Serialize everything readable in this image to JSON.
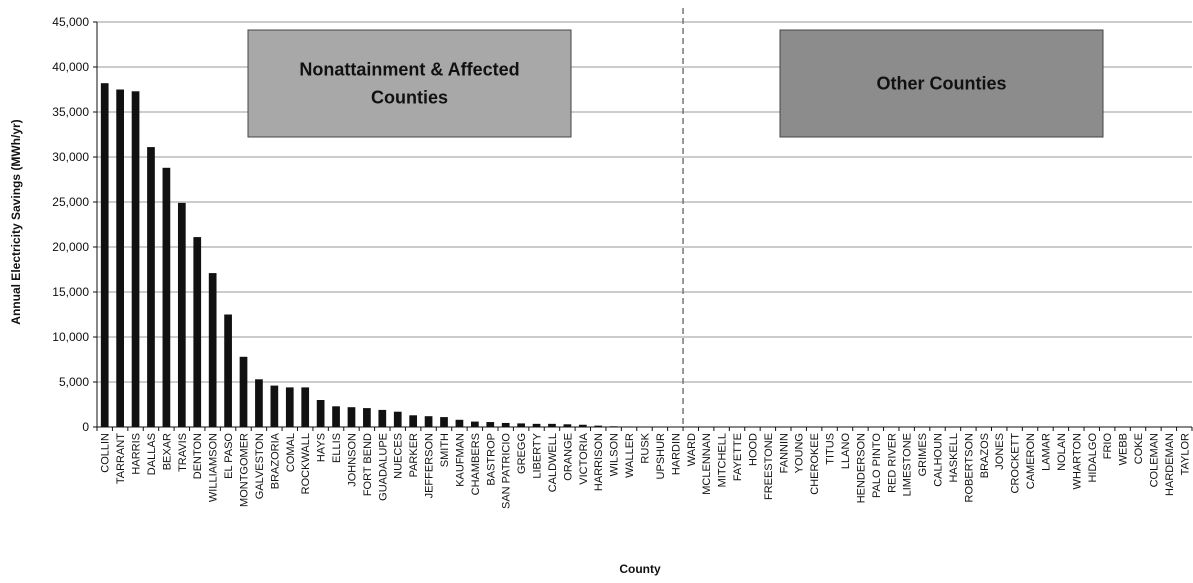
{
  "chart_data": {
    "type": "bar",
    "xlabel": "County",
    "ylabel": "Annual Electricity Savings (MWh/yr)",
    "ylim": [
      0,
      45000
    ],
    "yticks": [
      0,
      5000,
      10000,
      15000,
      20000,
      25000,
      30000,
      35000,
      40000,
      45000
    ],
    "ytick_labels": [
      "0",
      "5,000",
      "10,000",
      "15,000",
      "20,000",
      "25,000",
      "30,000",
      "35,000",
      "40,000",
      "45,000"
    ],
    "grid": "horizontal",
    "bar_color": "#111111",
    "categories": [
      "COLLIN",
      "TARRANT",
      "HARRIS",
      "DALLAS",
      "BEXAR",
      "TRAVIS",
      "DENTON",
      "WILLIAMSON",
      "EL PASO",
      "MONTGOMER",
      "GALVESTON",
      "BRAZORIA",
      "COMAL",
      "ROCKWALL",
      "HAYS",
      "ELLIS",
      "JOHNSON",
      "FORT BEND",
      "GUADALUPE",
      "NUECES",
      "PARKER",
      "JEFFERSON",
      "SMITH",
      "KAUFMAN",
      "CHAMBERS",
      "BASTROP",
      "SAN PATRICIO",
      "GREGG",
      "LIBERTY",
      "CALDWELL",
      "ORANGE",
      "VICTORIA",
      "HARRISON",
      "WILSON",
      "WALLER",
      "RUSK",
      "UPSHUR",
      "HARDIN",
      "WARD",
      "MCLENNAN",
      "MITCHELL",
      "FAYETTE",
      "HOOD",
      "FREESTONE",
      "FANNIN",
      "YOUNG",
      "CHEROKEE",
      "TITUS",
      "LLANO",
      "HENDERSON",
      "PALO PINTO",
      "RED RIVER",
      "LIMESTONE",
      "GRIMES",
      "CALHOUN",
      "HASKELL",
      "ROBERTSON",
      "BRAZOS",
      "JONES",
      "CROCKETT",
      "CAMERON",
      "LAMAR",
      "NOLAN",
      "WHARTON",
      "HIDALGO",
      "FRIO",
      "WEBB",
      "COKE",
      "COLEMAN",
      "HARDEMAN",
      "TAYLOR"
    ],
    "values": [
      38200,
      37500,
      37300,
      31100,
      28800,
      24900,
      21100,
      17100,
      12500,
      7800,
      5300,
      4600,
      4400,
      4400,
      3000,
      2300,
      2200,
      2100,
      1900,
      1700,
      1300,
      1200,
      1100,
      800,
      600,
      550,
      450,
      400,
      350,
      350,
      300,
      250,
      150,
      80,
      60,
      40,
      30,
      20,
      0,
      0,
      0,
      0,
      0,
      0,
      0,
      0,
      0,
      0,
      0,
      0,
      0,
      0,
      0,
      0,
      0,
      0,
      0,
      0,
      0,
      0,
      0,
      0,
      0,
      0,
      0,
      0,
      0,
      0,
      0,
      0,
      0
    ],
    "divider_after_category": "HARDIN",
    "annotations": [
      {
        "text_lines": [
          "Nonattainment & Affected",
          "Counties"
        ],
        "fill": "#a8a8a8"
      },
      {
        "text_lines": [
          "Other Counties"
        ],
        "fill": "#8c8c8c"
      }
    ]
  }
}
